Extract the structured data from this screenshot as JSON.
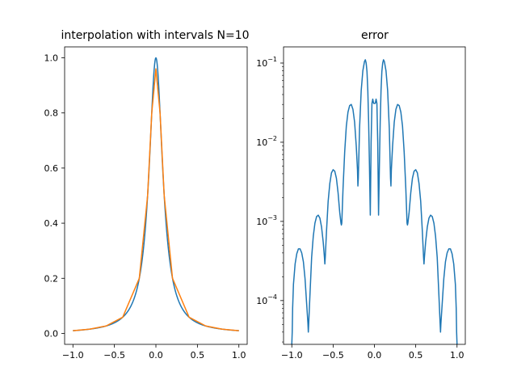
{
  "chart_data": [
    {
      "type": "line",
      "title": "interpolation with intervals N=10",
      "xlabel": "",
      "ylabel": "",
      "xlim": [
        -1.1,
        1.1
      ],
      "ylim": [
        -0.0397,
        1.0397
      ],
      "grid": false,
      "x_ticks": [
        -1.0,
        -0.5,
        0.0,
        0.5,
        1.0
      ],
      "x_tick_labels": [
        "−1.0",
        "−0.5",
        "0.0",
        "0.5",
        "1.0"
      ],
      "y_ticks": [
        0.0,
        0.2,
        0.4,
        0.6,
        0.8,
        1.0
      ],
      "y_tick_labels": [
        "0.0",
        "0.2",
        "0.4",
        "0.6",
        "0.8",
        "1.0"
      ],
      "series": [
        {
          "color": "#1f77b4",
          "function": "1/(1+100x^2)"
        },
        {
          "color": "#ff7f0e",
          "x": [
            -1.0,
            -0.8,
            -0.6,
            -0.4,
            -0.2,
            -0.1,
            -0.05,
            0.0,
            0.05,
            0.1,
            0.2,
            0.4,
            0.6,
            0.8,
            1.0
          ],
          "values": [
            0.0099,
            0.0154,
            0.027,
            0.0588,
            0.2,
            0.5,
            0.8,
            0.96,
            0.8,
            0.5,
            0.2,
            0.0588,
            0.027,
            0.0154,
            0.0099
          ]
        }
      ]
    },
    {
      "type": "line",
      "title": "error",
      "xlabel": "",
      "ylabel": "",
      "yscale": "log",
      "xlim": [
        -1.1,
        1.1
      ],
      "ylim": [
        2.8e-05,
        0.16
      ],
      "grid": false,
      "x_ticks": [
        -1.0,
        -0.5,
        0.0,
        0.5,
        1.0
      ],
      "x_tick_labels": [
        "−1.0",
        "−0.5",
        "0.0",
        "0.5",
        "1.0"
      ],
      "y_ticks": [
        0.0001,
        0.001,
        0.01,
        0.1
      ],
      "y_tick_labels": [
        {
          "base": "10",
          "exp": "−4"
        },
        {
          "base": "10",
          "exp": "−3"
        },
        {
          "base": "10",
          "exp": "−2"
        },
        {
          "base": "10",
          "exp": "−1"
        }
      ],
      "series": [
        {
          "color": "#1f77b4",
          "x": [
            -1.0,
            -0.995,
            -0.99,
            -0.98,
            -0.96,
            -0.94,
            -0.92,
            -0.9,
            -0.88,
            -0.86,
            -0.84,
            -0.82,
            -0.805,
            -0.8,
            -0.795,
            -0.78,
            -0.76,
            -0.74,
            -0.72,
            -0.7,
            -0.68,
            -0.66,
            -0.64,
            -0.62,
            -0.605,
            -0.6,
            -0.595,
            -0.58,
            -0.56,
            -0.54,
            -0.52,
            -0.5,
            -0.48,
            -0.46,
            -0.44,
            -0.42,
            -0.405,
            -0.4,
            -0.395,
            -0.38,
            -0.36,
            -0.34,
            -0.32,
            -0.3,
            -0.28,
            -0.26,
            -0.24,
            -0.22,
            -0.205,
            -0.2,
            -0.195,
            -0.18,
            -0.16,
            -0.14,
            -0.12,
            -0.11,
            -0.1,
            -0.09,
            -0.08,
            -0.07,
            -0.06,
            -0.05,
            -0.04,
            -0.03,
            -0.02,
            -0.01,
            0.0,
            0.01,
            0.02,
            0.03,
            0.04,
            0.05,
            0.06,
            0.07,
            0.08,
            0.09,
            0.1,
            0.11,
            0.12,
            0.14,
            0.16,
            0.18,
            0.195,
            0.2,
            0.205,
            0.22,
            0.24,
            0.26,
            0.28,
            0.3,
            0.32,
            0.34,
            0.36,
            0.38,
            0.395,
            0.4,
            0.405,
            0.42,
            0.44,
            0.46,
            0.48,
            0.5,
            0.52,
            0.54,
            0.56,
            0.58,
            0.595,
            0.6,
            0.605,
            0.62,
            0.64,
            0.66,
            0.68,
            0.7,
            0.72,
            0.74,
            0.76,
            0.78,
            0.795,
            0.8,
            0.805,
            0.82,
            0.84,
            0.86,
            0.88,
            0.9,
            0.92,
            0.94,
            0.96,
            0.98,
            0.99,
            0.995,
            1.0
          ],
          "values": [
            2.8e-05,
            4e-05,
            8e-05,
            0.00016,
            0.00029,
            0.00039,
            0.00045,
            0.00045,
            0.0004,
            0.00031,
            0.00019,
            9e-05,
            5.2e-05,
            4e-05,
            5.2e-05,
            0.00012,
            0.00035,
            0.00065,
            0.00095,
            0.00115,
            0.0012,
            0.0011,
            0.00085,
            0.00055,
            0.00035,
            0.00029,
            0.00035,
            0.00075,
            0.0018,
            0.003,
            0.0041,
            0.0045,
            0.0043,
            0.0035,
            0.0023,
            0.0013,
            0.00095,
            0.0009,
            0.00095,
            0.0026,
            0.0075,
            0.016,
            0.024,
            0.029,
            0.03,
            0.026,
            0.018,
            0.009,
            0.0045,
            0.0028,
            0.0035,
            0.015,
            0.045,
            0.08,
            0.105,
            0.11,
            0.1,
            0.078,
            0.045,
            0.018,
            0.005,
            0.0012,
            0.01,
            0.031,
            0.035,
            0.031,
            0.031,
            0.031,
            0.035,
            0.031,
            0.01,
            0.0012,
            0.005,
            0.018,
            0.045,
            0.078,
            0.1,
            0.11,
            0.105,
            0.08,
            0.045,
            0.015,
            0.0035,
            0.0028,
            0.0045,
            0.009,
            0.018,
            0.026,
            0.03,
            0.029,
            0.024,
            0.016,
            0.0075,
            0.0026,
            0.00095,
            0.0009,
            0.00095,
            0.0013,
            0.0023,
            0.0035,
            0.0043,
            0.0045,
            0.0041,
            0.003,
            0.0018,
            0.00075,
            0.00035,
            0.00029,
            0.00035,
            0.00055,
            0.00085,
            0.0011,
            0.0012,
            0.00115,
            0.00095,
            0.00065,
            0.00035,
            0.00012,
            5.2e-05,
            4e-05,
            5.2e-05,
            9e-05,
            0.00019,
            0.00031,
            0.0004,
            0.00045,
            0.00045,
            0.00039,
            0.00029,
            0.00016,
            8e-05,
            4e-05,
            2.8e-05
          ]
        }
      ]
    }
  ]
}
